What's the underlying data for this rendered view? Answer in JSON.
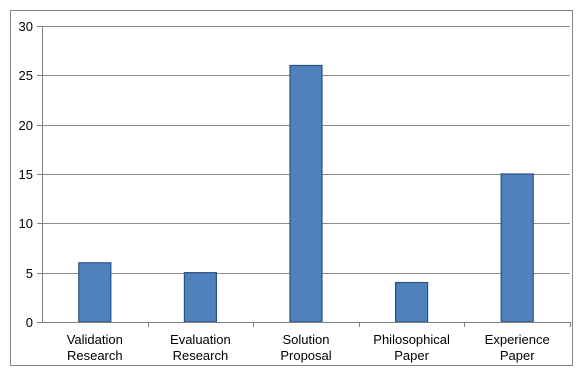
{
  "chart_data": {
    "type": "bar",
    "categories": [
      [
        "Validation",
        "Research"
      ],
      [
        "Evaluation",
        "Research"
      ],
      [
        "Solution",
        "Proposal"
      ],
      [
        "Philosophical",
        "Paper"
      ],
      [
        "Experience",
        "Paper"
      ]
    ],
    "values": [
      6,
      5,
      26,
      4,
      15
    ],
    "ylim": [
      0,
      30
    ],
    "yticks": [
      "0",
      "5",
      "10",
      "15",
      "20",
      "25",
      "30"
    ],
    "grid": true,
    "legend": "none",
    "title": "",
    "xlabel": "",
    "ylabel": "",
    "colors": {
      "bar_fill": "#4f81bd",
      "bar_stroke": "#2c4f7c",
      "grid": "#8c8c8c",
      "axis": "#808080"
    }
  }
}
